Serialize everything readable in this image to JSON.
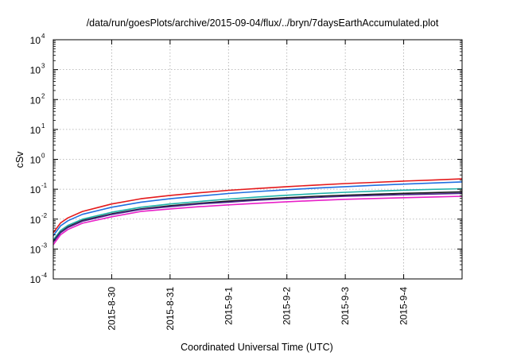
{
  "chart_data": {
    "type": "line",
    "title": "/data/run/goesPlots/archive/2015-09-04/flux/../bryn/7daysEarthAccumulated.plot",
    "xlabel": "Coordinated Universal Time (UTC)",
    "ylabel": "cSv",
    "y_scale": "log",
    "ylim": [
      0.0001,
      10000
    ],
    "y_ticks": [
      {
        "value": 0.0001,
        "base": "10",
        "exp": "-4"
      },
      {
        "value": 0.001,
        "base": "10",
        "exp": "-3"
      },
      {
        "value": 0.01,
        "base": "10",
        "exp": "-2"
      },
      {
        "value": 0.1,
        "base": "10",
        "exp": "-1"
      },
      {
        "value": 1,
        "base": "10",
        "exp": "0"
      },
      {
        "value": 10,
        "base": "10",
        "exp": "1"
      },
      {
        "value": 100,
        "base": "10",
        "exp": "2"
      },
      {
        "value": 1000,
        "base": "10",
        "exp": "3"
      },
      {
        "value": 10000,
        "base": "10",
        "exp": "4"
      }
    ],
    "xlim": [
      "2015-08-29T00:00",
      "2015-09-05T00:00"
    ],
    "x_ticks": [
      {
        "label": "2015-8-30",
        "value": "2015-08-30T00:00"
      },
      {
        "label": "2015-8-31",
        "value": "2015-08-31T00:00"
      },
      {
        "label": "2015-9-1",
        "value": "2015-09-01T00:00"
      },
      {
        "label": "2015-9-2",
        "value": "2015-09-02T00:00"
      },
      {
        "label": "2015-9-3",
        "value": "2015-09-03T00:00"
      },
      {
        "label": "2015-9-4",
        "value": "2015-09-04T00:00"
      }
    ],
    "grid": true,
    "x": [
      "2015-08-29T00:00",
      "2015-08-29T03:00",
      "2015-08-29T06:00",
      "2015-08-29T12:00",
      "2015-08-30T00:00",
      "2015-08-30T12:00",
      "2015-08-31T00:00",
      "2015-08-31T12:00",
      "2015-09-01T00:00",
      "2015-09-01T12:00",
      "2015-09-02T00:00",
      "2015-09-02T12:00",
      "2015-09-03T00:00",
      "2015-09-03T12:00",
      "2015-09-04T00:00",
      "2015-09-04T12:00",
      "2015-09-05T00:00"
    ],
    "series": [
      {
        "color": "#e41a1c",
        "values": [
          0.0035,
          0.0075,
          0.011,
          0.018,
          0.032,
          0.048,
          0.062,
          0.076,
          0.092,
          0.106,
          0.122,
          0.138,
          0.155,
          0.17,
          0.187,
          0.203,
          0.222
        ]
      },
      {
        "color": "#1f6fe0",
        "values": [
          0.0028,
          0.006,
          0.0088,
          0.0145,
          0.025,
          0.037,
          0.048,
          0.059,
          0.072,
          0.084,
          0.096,
          0.109,
          0.122,
          0.135,
          0.148,
          0.161,
          0.176
        ]
      },
      {
        "color": "#20b2aa",
        "values": [
          0.002,
          0.0042,
          0.0062,
          0.01,
          0.017,
          0.025,
          0.032,
          0.039,
          0.047,
          0.055,
          0.063,
          0.071,
          0.079,
          0.086,
          0.093,
          0.099,
          0.104
        ]
      },
      {
        "color": "#1a1a1a",
        "values": [
          0.0018,
          0.0037,
          0.0055,
          0.009,
          0.015,
          0.022,
          0.028,
          0.034,
          0.04,
          0.046,
          0.052,
          0.058,
          0.063,
          0.068,
          0.073,
          0.077,
          0.082
        ]
      },
      {
        "color": "#4b2a8c",
        "values": [
          0.0017,
          0.0035,
          0.0052,
          0.0085,
          0.0143,
          0.021,
          0.026,
          0.032,
          0.037,
          0.043,
          0.048,
          0.053,
          0.058,
          0.062,
          0.066,
          0.069,
          0.073
        ]
      },
      {
        "color": "#e81fc8",
        "values": [
          0.0014,
          0.003,
          0.0045,
          0.0073,
          0.012,
          0.018,
          0.022,
          0.026,
          0.03,
          0.034,
          0.038,
          0.042,
          0.046,
          0.049,
          0.052,
          0.055,
          0.058
        ]
      }
    ]
  }
}
